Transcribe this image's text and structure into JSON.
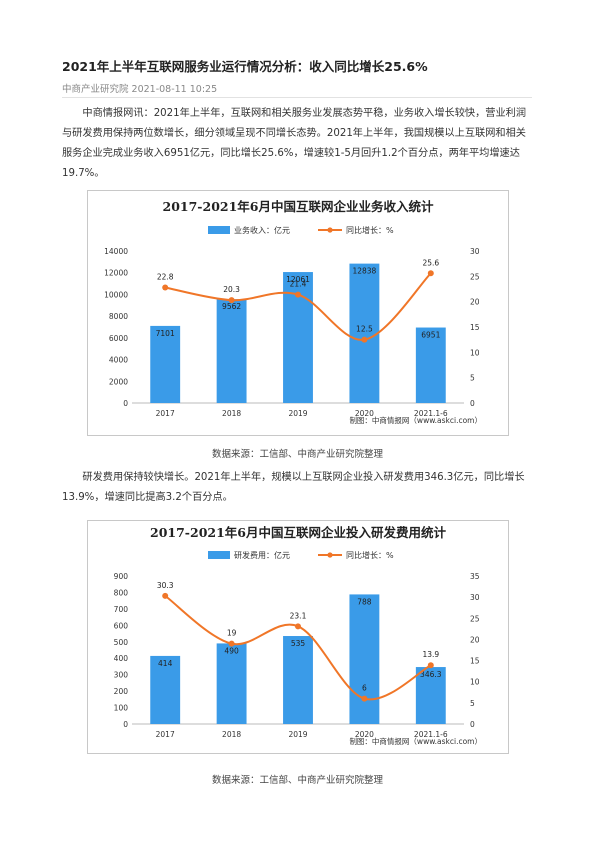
{
  "article": {
    "title": "2021年上半年互联网服务业运行情况分析：收入同比增长25.6%",
    "meta": "中商产业研究院 2021-08-11 10:25",
    "para1": "中商情报网讯：2021年上半年，互联网和相关服务业发展态势平稳，业务收入增长较快，营业利润与研发费用保持两位数增长，细分领域呈现不同增长态势。2021年上半年，我国规模以上互联网和相关服务企业完成业务收入6951亿元，同比增长25.6%，增速较1-5月回升1.2个百分点，两年平均增速达19.7%。",
    "source1": "数据来源：工信部、中商产业研究院整理",
    "para2": "研发费用保持较快增长。2021年上半年，规模以上互联网企业投入研发费用346.3亿元，同比增长13.9%，增速同比提高3.2个百分点。",
    "source2": "数据来源：工信部、中商产业研究院整理"
  },
  "chart_data": [
    {
      "type": "bar",
      "title": "2017-2021年6月中国互联网企业业务收入统计",
      "categories": [
        "2017",
        "2018",
        "2019",
        "2020",
        "2021.1-6"
      ],
      "series": [
        {
          "name": "业务收入：亿元",
          "kind": "bar",
          "axis": "left",
          "values": [
            7101,
            9562,
            12061,
            12838,
            6951
          ],
          "labels": [
            "7101",
            "9562",
            "12061",
            "12838",
            "6951"
          ]
        },
        {
          "name": "同比增长：%",
          "kind": "line",
          "axis": "right",
          "values": [
            22.8,
            20.3,
            21.4,
            12.5,
            25.6
          ],
          "labels": [
            "22.8",
            "20.3",
            "21.4",
            "12.5",
            "25.6"
          ]
        }
      ],
      "yleft": {
        "min": 0,
        "max": 14000,
        "ticks": [
          "0",
          "2000",
          "4000",
          "6000",
          "8000",
          "10000",
          "12000",
          "14000"
        ]
      },
      "yright": {
        "min": 0,
        "max": 30,
        "ticks": [
          "0",
          "5",
          "10",
          "15",
          "20",
          "25",
          "30"
        ]
      },
      "footer": "制图：中商情报网（www.askci.com）",
      "legend": "top-center",
      "grid": false,
      "colors": {
        "bar": "#3a9be8",
        "line": "#f07628"
      }
    },
    {
      "type": "bar",
      "title": "2017-2021年6月中国互联网企业投入研发费用统计",
      "categories": [
        "2017",
        "2018",
        "2019",
        "2020",
        "2021.1-6"
      ],
      "series": [
        {
          "name": "研发费用：亿元",
          "kind": "bar",
          "axis": "left",
          "values": [
            414,
            490,
            535,
            788,
            346.3
          ],
          "labels": [
            "414",
            "490",
            "535",
            "788",
            "346.3"
          ]
        },
        {
          "name": "同比增长：%",
          "kind": "line",
          "axis": "right",
          "values": [
            30.3,
            19,
            23.1,
            6,
            13.9
          ],
          "labels": [
            "30.3",
            "19",
            "23.1",
            "6",
            "13.9"
          ]
        }
      ],
      "yleft": {
        "min": 0,
        "max": 900,
        "ticks": [
          "0",
          "100",
          "200",
          "300",
          "400",
          "500",
          "600",
          "700",
          "800",
          "900"
        ]
      },
      "yright": {
        "min": 0,
        "max": 35,
        "ticks": [
          "0",
          "5",
          "10",
          "15",
          "20",
          "25",
          "30",
          "35"
        ]
      },
      "footer": "制图：中商情报网（www.askci.com）",
      "legend": "top-center",
      "grid": false,
      "colors": {
        "bar": "#3a9be8",
        "line": "#f07628"
      }
    }
  ]
}
